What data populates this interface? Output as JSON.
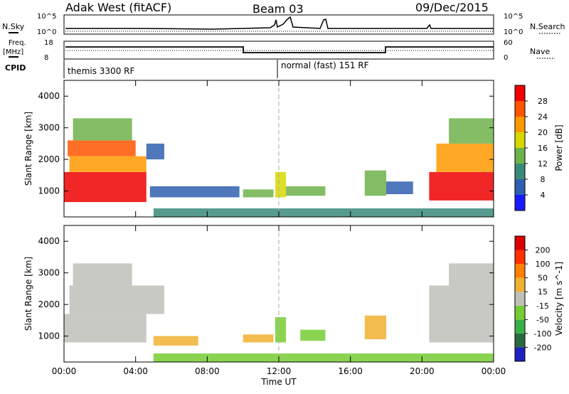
{
  "header": {
    "station": "Adak West (fitACF)",
    "beam": "Beam 03",
    "date": "09/Dec/2015"
  },
  "top_panels": {
    "nsky_label": "N.Sky",
    "nsearch_label": "N.Search",
    "nsky_ticks": [
      "10^5",
      "10^0"
    ],
    "nsearch_ticks": [
      "10^5",
      "10^0"
    ],
    "freq_label": "Freq.",
    "freq_unit": "[MHz]",
    "freq_ticks": [
      "18",
      "8"
    ],
    "nave_label": "Nave",
    "nave_ticks": [
      "60",
      "0"
    ],
    "cpid_label": "CPID",
    "cpid_segments": [
      {
        "label": "themis 3300 RF"
      },
      {
        "label": "normal (fast) 151 RF"
      }
    ]
  },
  "chart_data": [
    {
      "type": "heatmap",
      "title": "",
      "xlabel": "Time UT",
      "ylabel": "Slant Range [km]",
      "x_ticks": [
        "00:00",
        "04:00",
        "08:00",
        "12:00",
        "16:00",
        "20:00",
        "00:00"
      ],
      "x_range_hours": [
        0,
        24
      ],
      "y_ticks": [
        "1000",
        "2000",
        "3000",
        "4000"
      ],
      "y_range_km": [
        180,
        4500
      ],
      "colorbar": {
        "label": "Power [dB]",
        "ticks": [
          "4",
          "8",
          "12",
          "16",
          "20",
          "24",
          "28"
        ],
        "range": [
          0,
          30
        ],
        "colors": [
          "#1a1aff",
          "#2f5fb0",
          "#3a8a7a",
          "#6fb24a",
          "#d8d800",
          "#ff9900",
          "#ff5500",
          "#ee0000"
        ]
      },
      "regions": [
        {
          "t0": 0.0,
          "t1": 4.6,
          "r0": 650,
          "r1": 1600,
          "value": 27
        },
        {
          "t0": 0.3,
          "t1": 4.6,
          "r0": 1600,
          "r1": 2100,
          "value": 20
        },
        {
          "t0": 0.2,
          "t1": 4.0,
          "r0": 2100,
          "r1": 2600,
          "value": 24
        },
        {
          "t0": 0.5,
          "t1": 3.8,
          "r0": 2600,
          "r1": 3300,
          "value": 12
        },
        {
          "t0": 4.6,
          "t1": 5.6,
          "r0": 2000,
          "r1": 2500,
          "value": 6
        },
        {
          "t0": 4.8,
          "t1": 9.8,
          "r0": 800,
          "r1": 1150,
          "value": 6
        },
        {
          "t0": 10.0,
          "t1": 11.7,
          "r0": 800,
          "r1": 1050,
          "value": 12
        },
        {
          "t0": 11.8,
          "t1": 12.4,
          "r0": 800,
          "r1": 1600,
          "value": 16
        },
        {
          "t0": 12.4,
          "t1": 14.6,
          "r0": 850,
          "r1": 1150,
          "value": 12
        },
        {
          "t0": 16.8,
          "t1": 18.0,
          "r0": 850,
          "r1": 1650,
          "value": 14
        },
        {
          "t0": 18.0,
          "t1": 19.5,
          "r0": 900,
          "r1": 1300,
          "value": 6
        },
        {
          "t0": 20.4,
          "t1": 24.0,
          "r0": 700,
          "r1": 1600,
          "value": 27
        },
        {
          "t0": 20.8,
          "t1": 24.0,
          "r0": 1600,
          "r1": 2500,
          "value": 22
        },
        {
          "t0": 21.5,
          "t1": 24.0,
          "r0": 2500,
          "r1": 3300,
          "value": 12
        },
        {
          "t0": 5.0,
          "t1": 24.0,
          "r0": 180,
          "r1": 450,
          "value": 10
        }
      ]
    },
    {
      "type": "heatmap",
      "title": "",
      "xlabel": "Time UT",
      "ylabel": "Slant Range [km]",
      "x_ticks": [
        "00:00",
        "04:00",
        "08:00",
        "12:00",
        "16:00",
        "20:00",
        "00:00"
      ],
      "x_range_hours": [
        0,
        24
      ],
      "y_ticks": [
        "1000",
        "2000",
        "3000",
        "4000"
      ],
      "y_range_km": [
        180,
        4500
      ],
      "colorbar": {
        "label": "Velocity [m s^-1]",
        "ticks": [
          "200",
          "100",
          "50",
          "15",
          "-15",
          "-50",
          "-100",
          "-200"
        ],
        "range": [
          -250,
          250
        ],
        "colors": [
          "#2020c0",
          "#2a6a40",
          "#38b048",
          "#77cc33",
          "#c0c0b8",
          "#f0b030",
          "#ff8000",
          "#ff3000",
          "#dd0000"
        ]
      },
      "regions": [
        {
          "t0": 0.0,
          "t1": 4.6,
          "r0": 800,
          "r1": 1700,
          "value": 0
        },
        {
          "t0": 0.3,
          "t1": 5.6,
          "r0": 1700,
          "r1": 2600,
          "value": 0
        },
        {
          "t0": 0.5,
          "t1": 3.8,
          "r0": 2600,
          "r1": 3300,
          "value": 0
        },
        {
          "t0": 5.0,
          "t1": 7.5,
          "r0": 700,
          "r1": 1000,
          "value": 60
        },
        {
          "t0": 10.0,
          "t1": 11.7,
          "r0": 800,
          "r1": 1050,
          "value": 30
        },
        {
          "t0": 11.8,
          "t1": 12.4,
          "r0": 800,
          "r1": 1600,
          "value": -60
        },
        {
          "t0": 13.2,
          "t1": 14.6,
          "r0": 850,
          "r1": 1200,
          "value": -60
        },
        {
          "t0": 16.8,
          "t1": 18.0,
          "r0": 900,
          "r1": 1650,
          "value": 60
        },
        {
          "t0": 20.4,
          "t1": 24.0,
          "r0": 800,
          "r1": 2600,
          "value": 0
        },
        {
          "t0": 21.5,
          "t1": 24.0,
          "r0": 2600,
          "r1": 3300,
          "value": 0
        },
        {
          "t0": 5.0,
          "t1": 24.0,
          "r0": 180,
          "r1": 450,
          "value": -30
        }
      ]
    }
  ]
}
